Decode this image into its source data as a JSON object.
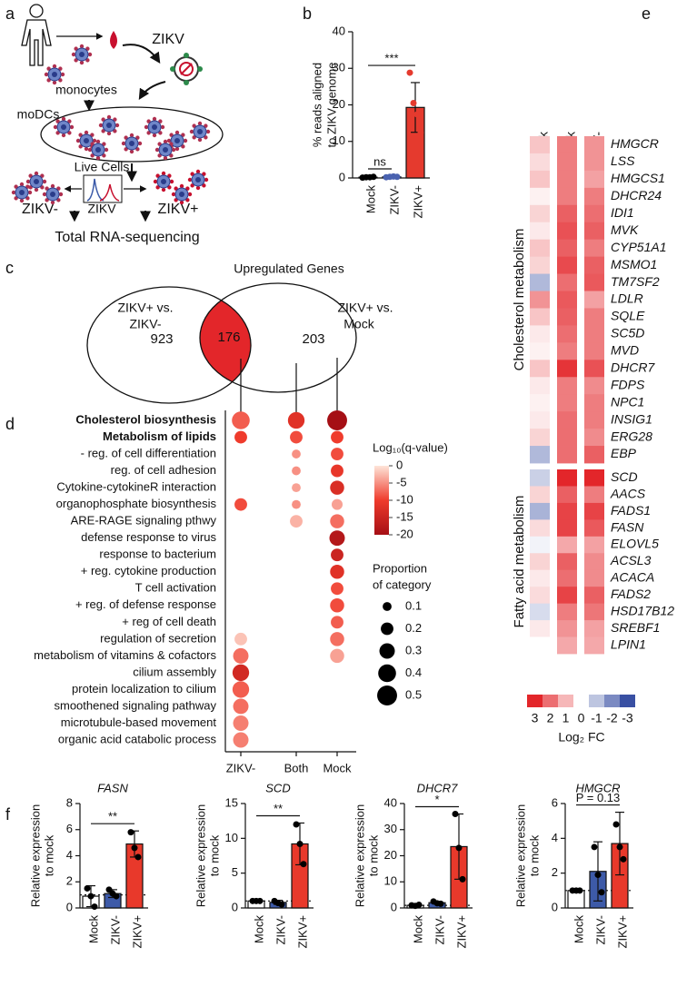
{
  "diagrams": {
    "a": {
      "label": "a",
      "monocytes": "monocytes",
      "virus": "ZIKV",
      "modcs": "moDCs",
      "live_cells": "Live Cells",
      "hist_axis": "ZIKV",
      "neg": "ZIKV-",
      "pos": "ZIKV+",
      "sequencing": "Total RNA-sequencing"
    },
    "c": {
      "label": "c",
      "title": "Upregulated Genes",
      "left_set": [
        "ZIKV+ vs.",
        "ZIKV-"
      ],
      "right_set": [
        "ZIKV+ vs.",
        "Mock"
      ],
      "left_only": 923,
      "both": 176,
      "right_only": 203
    }
  },
  "chart_data": [
    {
      "type": "bar",
      "label": "b",
      "ylabel_lines": [
        "% reads aligned",
        "to ZIKV genome"
      ],
      "categories": [
        "Mock",
        "ZIKV-",
        "ZIKV+"
      ],
      "colors": [
        "#ffffff",
        "#4a62b0",
        "#e53a2e"
      ],
      "values": [
        0.2,
        0.3,
        19.3
      ],
      "errors": [
        0.2,
        0.2,
        6.8
      ],
      "points": [
        [
          0.1,
          0.2,
          0.2,
          0.3
        ],
        [
          0.2,
          0.3,
          0.4,
          0.3
        ],
        [
          28.8,
          20.5,
          17.4,
          12.4
        ]
      ],
      "point_colors": [
        "#000000",
        "#4a62b0",
        "#e53a2e"
      ],
      "ylim": [
        0,
        40
      ],
      "yticks": [
        0,
        10,
        20,
        30,
        40
      ],
      "comparisons": [
        {
          "text": "ns",
          "between": [
            "Mock",
            "ZIKV-"
          ]
        },
        {
          "text": "***",
          "between": [
            "Mock",
            "ZIKV+"
          ]
        }
      ]
    },
    {
      "type": "dot",
      "label": "d",
      "categories": [
        "Cholesterol biosynthesis",
        "Metabolism of lipids",
        "- reg. of cell differentiation",
        "reg. of cell adhesion",
        "Cytokine-cytokineR interaction",
        "organophosphate biosynthesis",
        "ARE-RAGE signaling pthwy",
        "defense response to virus",
        "response to bacterium",
        "+ reg. cytokine production",
        "T cell activation",
        "+ reg. of defense response",
        "+ reg of cell death",
        "regulation of secretion",
        "metabolism of vitamins & cofactors",
        "cilium assembly",
        "protein localization to cilium",
        "smoothened signaling pathway",
        "microtubule-based movement",
        "organic acid catabolic process"
      ],
      "bold": [
        true,
        true,
        false,
        false,
        false,
        false,
        false,
        false,
        false,
        false,
        false,
        false,
        false,
        false,
        false,
        false,
        false,
        false,
        false,
        false
      ],
      "series": [
        {
          "name": "ZIKV-",
          "values": [
            -8,
            -10,
            null,
            null,
            null,
            -9,
            null,
            null,
            null,
            null,
            null,
            null,
            null,
            -2,
            -7,
            -14,
            -8,
            -7,
            -6,
            -6
          ],
          "sizes": [
            0.4,
            0.2,
            null,
            null,
            null,
            0.2,
            null,
            null,
            null,
            null,
            null,
            null,
            null,
            0.2,
            0.3,
            0.35,
            0.35,
            0.3,
            0.3,
            0.3
          ]
        },
        {
          "name": "Both",
          "values": [
            -12,
            -9,
            -5,
            -5,
            -4,
            -5,
            -3,
            null,
            null,
            null,
            null,
            null,
            null,
            null,
            null,
            null,
            null,
            null,
            null,
            null
          ],
          "sizes": [
            0.35,
            0.2,
            0.1,
            0.1,
            0.1,
            0.1,
            0.2,
            null,
            null,
            null,
            null,
            null,
            null,
            null,
            null,
            null,
            null,
            null,
            null,
            null
          ]
        },
        {
          "name": "Mock",
          "values": [
            -20,
            -10,
            -9,
            -11,
            -13,
            -4,
            -7,
            -18,
            -15,
            -12,
            -9,
            -9,
            -8,
            -7,
            -4,
            null,
            null,
            null,
            null,
            null
          ],
          "sizes": [
            0.5,
            0.2,
            0.2,
            0.2,
            0.25,
            0.15,
            0.25,
            0.3,
            0.2,
            0.25,
            0.2,
            0.25,
            0.2,
            0.25,
            0.25,
            null,
            null,
            null,
            null,
            null
          ]
        }
      ],
      "color_label": "Log₁₀(q-value)",
      "clim": [
        -20,
        0
      ],
      "cticks": [
        0,
        -5,
        -10,
        -15,
        -20
      ],
      "colormap": [
        "#a50f15",
        "#ef3b2c",
        "#fee5d9"
      ],
      "size_label_lines": [
        "Proportion",
        "of category"
      ],
      "size_ticks": [
        0.1,
        0.2,
        0.3,
        0.4,
        0.5
      ]
    },
    {
      "type": "heatmap",
      "label": "e",
      "columns": [
        "ZIKV- v. Mock",
        "ZIKV+ v. Mock",
        "ZIKV+ v. ZIKV-"
      ],
      "groups": [
        {
          "name": "Cholesterol metabolism",
          "rows": [
            "HMGCR",
            "LSS",
            "HMGCS1",
            "DHCR24",
            "IDI1",
            "MVK",
            "CYP51A1",
            "MSMO1",
            "TM7SF2",
            "LDLR",
            "SQLE",
            "SC5D",
            "MVD",
            "DHCR7",
            "FDPS",
            "NPC1",
            "INSIG1",
            "ERG28",
            "EBP"
          ],
          "values": [
            [
              0.8,
              1.8,
              1.5
            ],
            [
              0.5,
              1.8,
              1.5
            ],
            [
              0.8,
              1.8,
              1.3
            ],
            [
              0.2,
              1.8,
              1.8
            ],
            [
              0.6,
              2.2,
              2.0
            ],
            [
              0.3,
              2.4,
              2.2
            ],
            [
              0.8,
              2.2,
              1.8
            ],
            [
              0.6,
              2.5,
              2.2
            ],
            [
              -1.2,
              2.0,
              2.3
            ],
            [
              1.5,
              2.3,
              1.3
            ],
            [
              0.8,
              2.2,
              1.8
            ],
            [
              0.3,
              2.0,
              1.8
            ],
            [
              0.2,
              1.8,
              1.8
            ],
            [
              0.8,
              2.8,
              2.4
            ],
            [
              0.3,
              1.8,
              1.6
            ],
            [
              0.2,
              1.8,
              1.8
            ],
            [
              0.3,
              2.0,
              1.8
            ],
            [
              0.6,
              2.0,
              1.6
            ],
            [
              -1.2,
              2.0,
              2.2
            ]
          ]
        },
        {
          "name": "Fatty acid metabolism",
          "rows": [
            "SCD",
            "AACS",
            "FADS1",
            "FASN",
            "ELOVL5",
            "ACSL3",
            "ACACA",
            "FADS2",
            "HSD17B12",
            "SREBF1",
            "LPIN1"
          ],
          "values": [
            [
              -0.8,
              3,
              3
            ],
            [
              0.6,
              2.2,
              1.8
            ],
            [
              -1.3,
              2.6,
              2.6
            ],
            [
              0.5,
              2.6,
              2.3
            ],
            [
              -0.2,
              1.2,
              1.3
            ],
            [
              0.6,
              2.2,
              1.6
            ],
            [
              0.3,
              2.0,
              1.6
            ],
            [
              0.5,
              2.6,
              2.2
            ],
            [
              -0.6,
              1.8,
              1.9
            ],
            [
              0.3,
              1.5,
              1.3
            ],
            [
              0,
              1.2,
              1.2
            ]
          ]
        }
      ],
      "clim": [
        -3,
        3
      ],
      "pos_color": "#e3262a",
      "neg_color": "#3950a3",
      "legend_ticks": [
        3,
        2,
        1,
        0,
        -1,
        -2,
        -3
      ],
      "legend_label": "Log₂ FC"
    },
    {
      "type": "bar",
      "label": "f",
      "title": "FASN",
      "ylabel_lines": [
        "Relative expression",
        "to mock"
      ],
      "categories": [
        "Mock",
        "ZIKV-",
        "ZIKV+"
      ],
      "colors": [
        "#ffffff",
        "#3d5aa8",
        "#e8392b"
      ],
      "values": [
        0.9,
        1.1,
        4.9
      ],
      "errors": [
        0.8,
        0.3,
        1.0
      ],
      "points": [
        [
          1.5,
          0.9,
          0.1
        ],
        [
          1.4,
          1.1,
          0.9
        ],
        [
          5.8,
          4.6,
          3.9
        ]
      ],
      "point_colors": [
        "#000000",
        "#000000",
        "#000000"
      ],
      "ylim": [
        0,
        8
      ],
      "yticks": [
        0,
        2,
        4,
        6,
        8
      ],
      "refline": 1,
      "comparisons": [
        {
          "text": "**",
          "between": [
            "Mock",
            "ZIKV+"
          ]
        }
      ]
    },
    {
      "type": "bar",
      "title": "SCD",
      "ylabel_lines": [
        "Relative expression",
        "to mock"
      ],
      "categories": [
        "Mock",
        "ZIKV-",
        "ZIKV+"
      ],
      "colors": [
        "#ffffff",
        "#3d5aa8",
        "#e8392b"
      ],
      "values": [
        1.0,
        0.8,
        9.2
      ],
      "errors": [
        0.1,
        0.3,
        3.0
      ],
      "points": [
        [
          1.0,
          1.0,
          1.0
        ],
        [
          1.0,
          0.7,
          0.5
        ],
        [
          12.0,
          9.2,
          6.3
        ]
      ],
      "point_colors": [
        "#000000",
        "#000000",
        "#000000"
      ],
      "ylim": [
        0,
        15
      ],
      "yticks": [
        0,
        5,
        10,
        15
      ],
      "refline": 1,
      "comparisons": [
        {
          "text": "**",
          "between": [
            "Mock",
            "ZIKV+"
          ]
        }
      ]
    },
    {
      "type": "bar",
      "title": "DHCR7",
      "ylabel_lines": [
        "Relative expression",
        "to mock"
      ],
      "categories": [
        "Mock",
        "ZIKV-",
        "ZIKV+"
      ],
      "colors": [
        "#ffffff",
        "#3d5aa8",
        "#e8392b"
      ],
      "values": [
        1.0,
        2.0,
        23.5
      ],
      "errors": [
        0.2,
        0.5,
        12.5
      ],
      "points": [
        [
          1.0,
          0.8,
          1.2
        ],
        [
          2.5,
          1.8,
          1.6
        ],
        [
          36,
          23,
          11
        ]
      ],
      "point_colors": [
        "#000000",
        "#000000",
        "#000000"
      ],
      "ylim": [
        0,
        40
      ],
      "yticks": [
        0,
        10,
        20,
        30,
        40
      ],
      "refline": 1,
      "comparisons": [
        {
          "text": "*",
          "between": [
            "Mock",
            "ZIKV+"
          ]
        }
      ]
    },
    {
      "type": "bar",
      "title": "HMGCR",
      "ylabel_lines": [
        "Relative expression",
        "to mock"
      ],
      "categories": [
        "Mock",
        "ZIKV-",
        "ZIKV+"
      ],
      "colors": [
        "#ffffff",
        "#3d5aa8",
        "#e8392b"
      ],
      "values": [
        1.0,
        2.1,
        3.7
      ],
      "errors": [
        0.05,
        1.7,
        1.8
      ],
      "points": [
        [
          1.0,
          1.0,
          1.0
        ],
        [
          3.5,
          1.9,
          0.9
        ],
        [
          4.8,
          3.5,
          2.8
        ]
      ],
      "point_colors": [
        "#000000",
        "#000000",
        "#000000"
      ],
      "ylim": [
        0,
        6
      ],
      "yticks": [
        0,
        2,
        4,
        6
      ],
      "refline": 1,
      "comparisons": [
        {
          "text": "P = 0.13",
          "between": [
            "Mock",
            "ZIKV+"
          ]
        }
      ]
    }
  ]
}
